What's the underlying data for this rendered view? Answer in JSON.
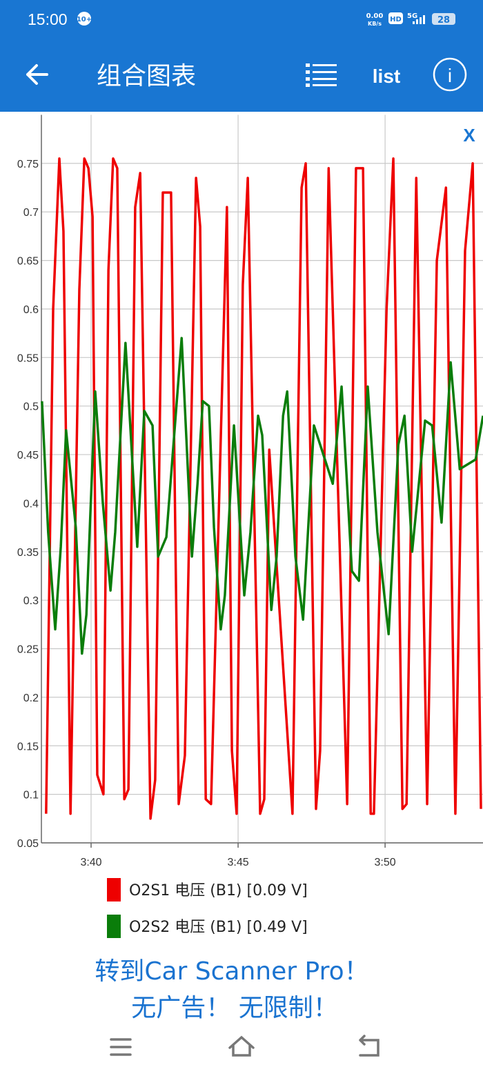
{
  "status_bar": {
    "time": "15:00",
    "badge": "10+",
    "net_speed": "0.00",
    "net_unit": "KB/s",
    "hd": "HD",
    "signal": "5G",
    "battery": "28"
  },
  "app_bar": {
    "title": "组合图表",
    "list": "list"
  },
  "chart_close": "X",
  "chart_data": {
    "type": "line",
    "xlim": [
      218.31,
      233.33
    ],
    "ylim": [
      0.05,
      0.8
    ],
    "xticks": [
      {
        "value": 220,
        "label": "3:40"
      },
      {
        "value": 225,
        "label": "3:45"
      },
      {
        "value": 230,
        "label": "3:50"
      }
    ],
    "yticks": [
      0.05,
      0.1,
      0.15,
      0.2,
      0.25,
      0.3,
      0.35,
      0.4,
      0.45,
      0.5,
      0.55,
      0.6,
      0.65,
      0.7,
      0.75
    ],
    "grid": true,
    "series": [
      {
        "name": "O2S1 电压 (B1) [0.09 V]",
        "color": "#ee0000",
        "x": [
          218.47,
          218.71,
          218.92,
          219.06,
          219.3,
          219.6,
          219.77,
          219.91,
          220.05,
          220.21,
          220.42,
          220.59,
          220.75,
          220.89,
          221.13,
          221.27,
          221.5,
          221.67,
          222.02,
          222.18,
          222.44,
          222.72,
          222.98,
          223.19,
          223.57,
          223.71,
          223.9,
          224.08,
          224.62,
          224.79,
          224.95,
          225.16,
          225.33,
          225.75,
          225.89,
          226.06,
          226.85,
          227.16,
          227.3,
          227.65,
          227.79,
          228.08,
          228.71,
          229.01,
          229.25,
          229.51,
          229.62,
          230.05,
          230.28,
          230.59,
          230.73,
          231.06,
          231.43,
          231.76,
          232.07,
          232.39,
          232.72,
          232.98,
          233.26
        ],
        "values": [
          0.08,
          0.6,
          0.755,
          0.68,
          0.08,
          0.62,
          0.755,
          0.745,
          0.695,
          0.12,
          0.1,
          0.64,
          0.755,
          0.745,
          0.095,
          0.105,
          0.705,
          0.74,
          0.075,
          0.115,
          0.72,
          0.72,
          0.09,
          0.14,
          0.735,
          0.685,
          0.095,
          0.09,
          0.705,
          0.145,
          0.08,
          0.625,
          0.735,
          0.08,
          0.095,
          0.455,
          0.08,
          0.725,
          0.75,
          0.085,
          0.145,
          0.745,
          0.09,
          0.745,
          0.745,
          0.08,
          0.08,
          0.6,
          0.755,
          0.085,
          0.09,
          0.735,
          0.09,
          0.65,
          0.725,
          0.08,
          0.66,
          0.75,
          0.085
        ]
      },
      {
        "name": "O2S2 电压 (B1) [0.49 V]",
        "color": "#0a7d0a",
        "x": [
          218.33,
          218.54,
          218.78,
          218.97,
          219.15,
          219.48,
          219.69,
          219.84,
          220.14,
          220.4,
          220.66,
          220.82,
          221.17,
          221.57,
          221.81,
          222.09,
          222.28,
          222.56,
          223.08,
          223.43,
          223.62,
          223.8,
          224.01,
          224.18,
          224.41,
          224.55,
          224.86,
          225.21,
          225.42,
          225.68,
          225.82,
          226.13,
          226.31,
          226.53,
          226.67,
          226.95,
          227.21,
          227.58,
          228.22,
          228.52,
          228.87,
          229.11,
          229.41,
          229.74,
          230.12,
          230.45,
          230.66,
          230.92,
          231.36,
          231.6,
          231.92,
          232.23,
          232.54,
          233.08,
          233.33
        ],
        "values": [
          0.505,
          0.37,
          0.27,
          0.355,
          0.475,
          0.375,
          0.245,
          0.285,
          0.515,
          0.4,
          0.31,
          0.37,
          0.565,
          0.355,
          0.495,
          0.48,
          0.345,
          0.365,
          0.57,
          0.345,
          0.42,
          0.505,
          0.5,
          0.375,
          0.27,
          0.305,
          0.48,
          0.305,
          0.37,
          0.49,
          0.47,
          0.29,
          0.345,
          0.49,
          0.515,
          0.345,
          0.28,
          0.48,
          0.42,
          0.52,
          0.33,
          0.32,
          0.52,
          0.37,
          0.265,
          0.46,
          0.49,
          0.35,
          0.485,
          0.48,
          0.38,
          0.545,
          0.435,
          0.445,
          0.49
        ]
      }
    ]
  },
  "promo": {
    "line1": "转到Car Scanner Pro！",
    "line2": "无广告！ 无限制！"
  }
}
